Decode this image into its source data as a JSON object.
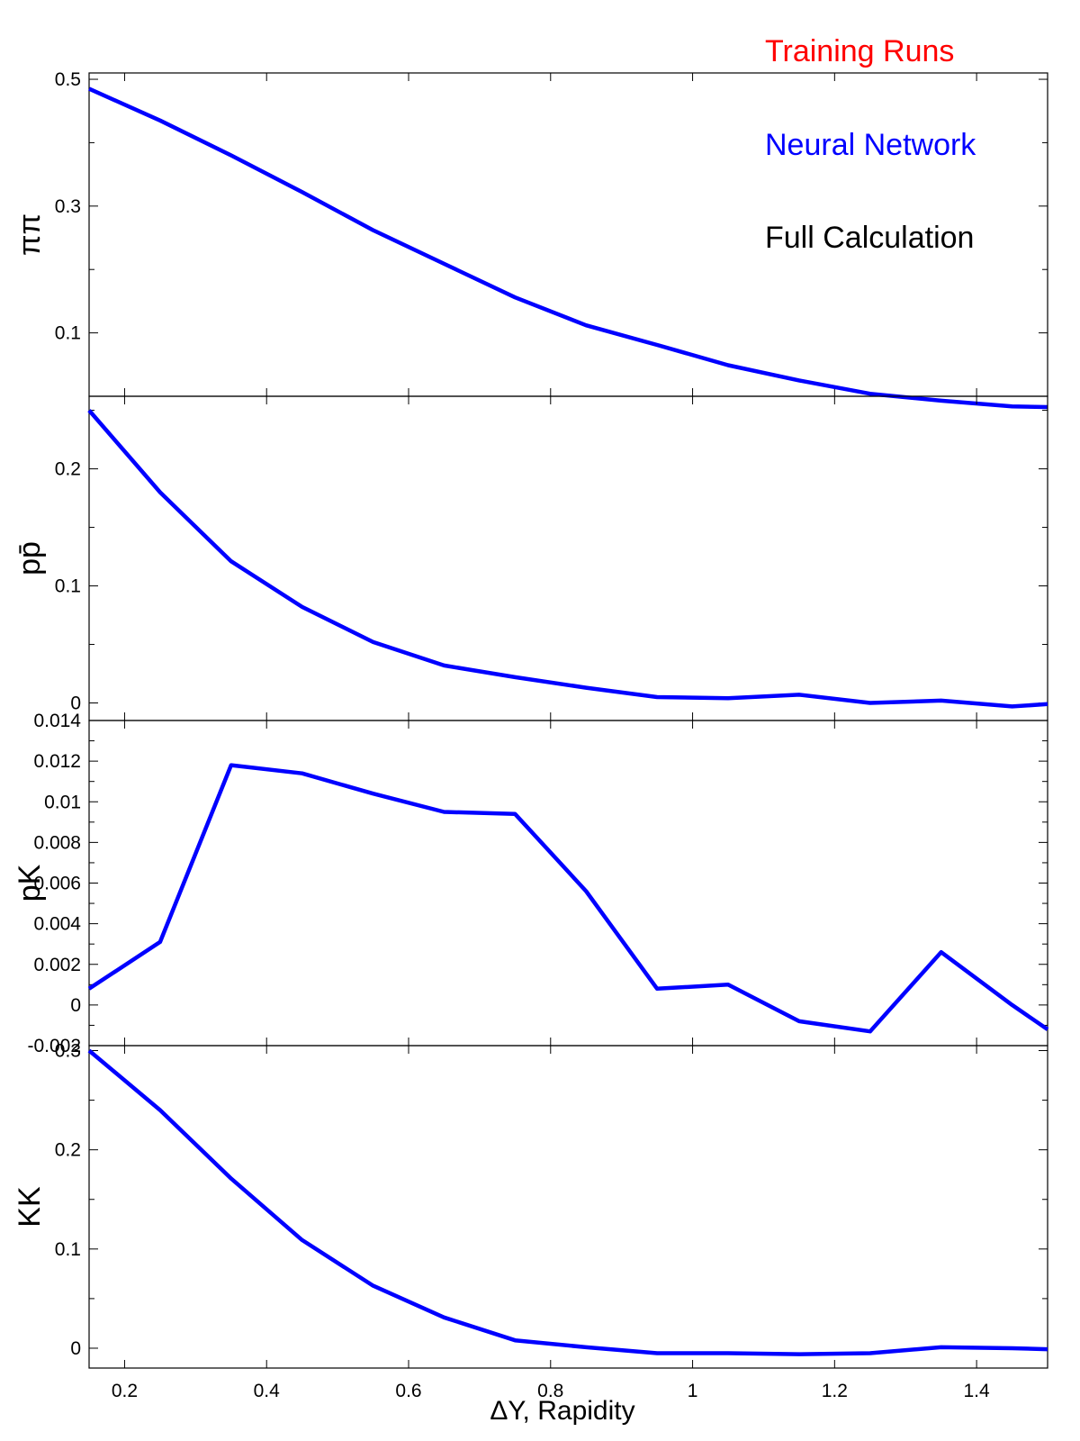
{
  "chart_data": {
    "type": "line",
    "x_label": "ΔY, Rapidity",
    "x_range": [
      0.15,
      1.5
    ],
    "x_ticks": [
      "0.2",
      "0.4",
      "0.6",
      "0.8",
      "1",
      "1.2",
      "1.4"
    ],
    "x_tick_values": [
      0.2,
      0.4,
      0.6,
      0.8,
      1.0,
      1.2,
      1.4
    ],
    "legend": {
      "placement": "top-right",
      "entries": [
        {
          "label": "Training Runs",
          "color": "#ff0000"
        },
        {
          "label": "Neural Network",
          "color": "#0000ff"
        },
        {
          "label": "Full Calculation",
          "color": "#000000"
        }
      ]
    },
    "line_color": "#0000ff",
    "x": [
      0.15,
      0.25,
      0.35,
      0.45,
      0.55,
      0.65,
      0.75,
      0.85,
      0.95,
      1.05,
      1.15,
      1.25,
      1.35,
      1.45,
      1.5
    ],
    "panels": [
      {
        "ylabel": "ππ",
        "ylim": [
          0.0,
          0.51
        ],
        "yticks": [
          "0.5",
          "0.3",
          "0.1"
        ],
        "ytick_values": [
          0.5,
          0.3,
          0.1
        ],
        "values": [
          0.485,
          0.435,
          0.38,
          0.322,
          0.262,
          0.209,
          0.156,
          0.112,
          0.081,
          0.049,
          0.025,
          0.004,
          -0.007,
          -0.016,
          -0.017
        ]
      },
      {
        "ylabel": "pp̄",
        "ylim": [
          -0.015,
          0.262
        ],
        "yticks": [
          "0.2",
          "0.1",
          "0"
        ],
        "ytick_values": [
          0.2,
          0.1,
          0.0
        ],
        "values": [
          0.25,
          0.18,
          0.121,
          0.082,
          0.052,
          0.032,
          0.022,
          0.013,
          0.005,
          0.004,
          0.007,
          0.0,
          0.002,
          -0.003,
          -0.001
        ]
      },
      {
        "ylabel": "pK",
        "ylim": [
          -0.002,
          0.014
        ],
        "yticks": [
          "0.014",
          "0.012",
          "0.01",
          "0.008",
          "0.006",
          "0.004",
          "0.002",
          "0",
          "-0.002"
        ],
        "ytick_values": [
          0.014,
          0.012,
          0.01,
          0.008,
          0.006,
          0.004,
          0.002,
          0.0,
          -0.002
        ],
        "values": [
          0.0008,
          0.0031,
          0.0118,
          0.0114,
          0.0104,
          0.0095,
          0.0094,
          0.0056,
          0.0008,
          0.001,
          -0.0008,
          -0.0013,
          0.0026,
          0.0,
          -0.0012
        ]
      },
      {
        "ylabel": "KK",
        "ylim": [
          -0.02,
          0.305
        ],
        "yticks": [
          "0.3",
          "0.2",
          "0.1",
          "0"
        ],
        "ytick_values": [
          0.3,
          0.2,
          0.1,
          0.0
        ],
        "values": [
          0.3,
          0.24,
          0.171,
          0.109,
          0.063,
          0.031,
          0.008,
          0.001,
          -0.005,
          -0.005,
          -0.006,
          -0.005,
          0.001,
          0.0,
          -0.001
        ]
      }
    ]
  }
}
